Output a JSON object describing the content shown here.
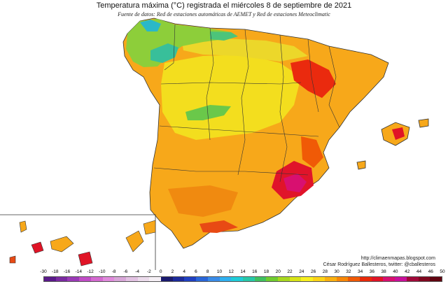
{
  "map": {
    "title": "Temperatura máxima (°C) registrada el miércoles 8 de septiembre de 2021",
    "subtitle": "Fuente de datos: Red de estaciones automáticas de AEMET y Red de estaciones Meteoclimatic",
    "credit_url": "http://climaenmapas.blogspot.com",
    "credit_author": "César Rodríguez Ballesteros, twitter: @cballesteros"
  },
  "legend": {
    "labels": [
      "-30",
      "-18",
      "-16",
      "-14",
      "-12",
      "-10",
      "-8",
      "-6",
      "-4",
      "-2",
      "0",
      "2",
      "4",
      "6",
      "8",
      "10",
      "12",
      "14",
      "16",
      "18",
      "20",
      "22",
      "24",
      "26",
      "28",
      "30",
      "32",
      "34",
      "36",
      "38",
      "40",
      "42",
      "44",
      "46",
      "50"
    ],
    "colors": [
      "#5a1a8a",
      "#7a2aa0",
      "#9a3ab6",
      "#c04cc6",
      "#d46ad0",
      "#e08adc",
      "#d8a6d8",
      "#e2c2e2",
      "#ecdcec",
      "#f6f0f6",
      "#1a1a6e",
      "#1c2a9a",
      "#2040c0",
      "#2a66d8",
      "#3a8ce8",
      "#30b0f0",
      "#20ccd8",
      "#28c8a8",
      "#40c060",
      "#70cc30",
      "#a8d820",
      "#d8e418",
      "#f8f020",
      "#fcd418",
      "#fab010",
      "#f88808",
      "#f05a06",
      "#e82a0a",
      "#e01426",
      "#d81070",
      "#c8109a",
      "#a00a3a",
      "#800820",
      "#600410"
    ]
  }
}
